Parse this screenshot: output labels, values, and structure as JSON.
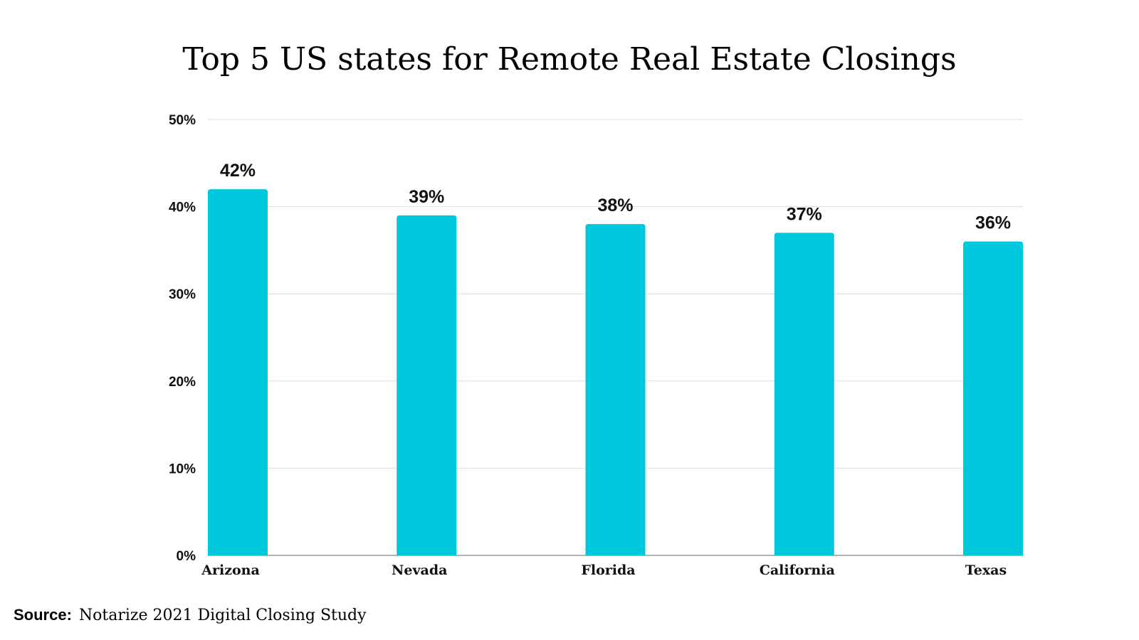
{
  "chart_data": {
    "type": "bar",
    "title": "Top 5 US states for Remote Real Estate Closings",
    "categories": [
      "Arizona",
      "Nevada",
      "Florida",
      "California",
      "Texas"
    ],
    "values": [
      42,
      39,
      38,
      37,
      36
    ],
    "data_labels": [
      "42%",
      "39%",
      "38%",
      "37%",
      "36%"
    ],
    "ylim": [
      0,
      50
    ],
    "yticks": [
      0,
      10,
      20,
      30,
      40,
      50
    ],
    "ytick_labels": [
      "0%",
      "10%",
      "20%",
      "30%",
      "40%",
      "50%"
    ],
    "xlabel": "",
    "ylabel": "",
    "grid": true,
    "bar_color": "#00C8DC"
  },
  "source": {
    "label": "Source:",
    "text": "Notarize 2021 Digital Closing Study"
  }
}
